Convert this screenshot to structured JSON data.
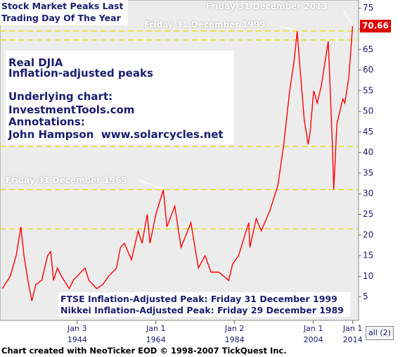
{
  "chart_data": {
    "type": "line",
    "title": "Stock Market Peaks Last\nTrading Day Of The Year",
    "color": "#ff0000",
    "x": [
      1925,
      1927,
      1928.5,
      1929.7,
      1930.5,
      1931.5,
      1932.5,
      1933.5,
      1935,
      1936.5,
      1937.3,
      1938,
      1939,
      1940,
      1942,
      1943,
      1944,
      1946,
      1947,
      1949,
      1950.5,
      1952,
      1954,
      1955,
      1956,
      1957.8,
      1959.5,
      1960.5,
      1961.8,
      1962.5,
      1964,
      1965.9,
      1966.8,
      1968.8,
      1970.4,
      1972.9,
      1974.8,
      1976.5,
      1978,
      1980,
      1982.5,
      1983.5,
      1985,
      1987.6,
      1987.9,
      1989.5,
      1990.8,
      1993,
      1995,
      1996.5,
      1998,
      1999.1,
      1999.9,
      2000.5,
      2001.7,
      2002.7,
      2003.2,
      2004.1,
      2005,
      2006,
      2007.8,
      2008.8,
      2009.2,
      2010,
      2011.5,
      2012,
      2013,
      2013.99
    ],
    "values": [
      7,
      10,
      15,
      22,
      15,
      9,
      4,
      8,
      9,
      15,
      16,
      9,
      12,
      10,
      7,
      9,
      10,
      12,
      9,
      7,
      8,
      10,
      12,
      17,
      18,
      14,
      21,
      18,
      25,
      18,
      25,
      31,
      22,
      27,
      17,
      23,
      12,
      15,
      11,
      11,
      9,
      13,
      15,
      23,
      17,
      24,
      21,
      26,
      32,
      42,
      55,
      62,
      69.4,
      62,
      48,
      42,
      45,
      55,
      52,
      56,
      67,
      43,
      31,
      47,
      53,
      52,
      58,
      70.66
    ],
    "xlim": [
      1924.4,
      2015.5
    ],
    "xticks": [
      {
        "value": 1944.0,
        "label": "Jan 3\n1944"
      },
      {
        "value": 1964.0,
        "label": "Jan 1\n1964"
      },
      {
        "value": 1984.0,
        "label": "Jan 2\n1984"
      },
      {
        "value": 2004.0,
        "label": "Jan 1\n2004"
      },
      {
        "value": 2014.0,
        "label": "Jan 1\n2014"
      }
    ],
    "ylim": [
      -0.7,
      77
    ],
    "yticks": [
      5,
      10,
      15,
      20,
      25,
      30,
      35,
      40,
      45,
      50,
      55,
      60,
      65,
      70,
      75
    ],
    "reference_lines": [
      69.5,
      67.3,
      41.5,
      31,
      21.5
    ],
    "annotations": [
      "Friday 31 December 2013",
      "Friday 31 December 1999",
      "Friday 31 December 1965"
    ],
    "text_box": [
      "Real DJIA",
      "Inflation-adjusted peaks",
      "Underlying chart:",
      "InvestmentTools.com",
      "Annotations:",
      "John Hampson  www.solarcycles.net"
    ],
    "notes": [
      "FTSE Inflation-Adjusted Peak: Friday 31 December 1999",
      "Nikkei Inflation-Adjusted Peak: Friday 29 December 1989"
    ],
    "button_label": "all (2)",
    "footer": "Chart created with NeoTicker EOD © 1998-2007 TickQuest Inc."
  }
}
